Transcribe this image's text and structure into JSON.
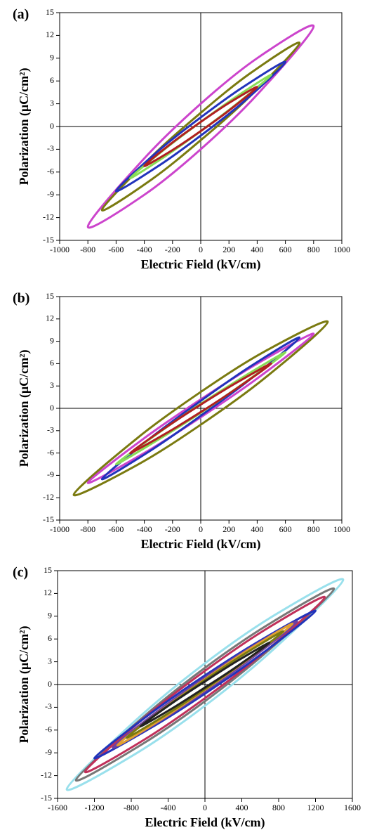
{
  "chart_data": [
    {
      "type": "line",
      "label": "(a)",
      "xlabel": "Electric Field (kV/cm)",
      "ylabel": "Polarization (μC/cm²)",
      "xlim": [
        -1000,
        1000
      ],
      "xticks": [
        -1000,
        -800,
        -600,
        -400,
        -200,
        0,
        200,
        400,
        600,
        800,
        1000
      ],
      "ylim": [
        -15,
        15
      ],
      "yticks": [
        -15,
        -12,
        -9,
        -6,
        -3,
        0,
        3,
        6,
        9,
        12,
        15
      ],
      "series": [
        {
          "color": "#cc44cc",
          "x": [
            800,
            400,
            0,
            -400,
            -800,
            -400,
            0,
            400
          ],
          "values": [
            13.2,
            9,
            3,
            -4.2,
            -13.2,
            -9,
            -3,
            4.2
          ]
        },
        {
          "color": "#7a7a10",
          "x": [
            700,
            350,
            0,
            -350,
            -700,
            -350,
            0,
            350
          ],
          "values": [
            11,
            7,
            1.8,
            -4,
            -11,
            -7,
            -1.8,
            4
          ]
        },
        {
          "color": "#2233bb",
          "x": [
            600,
            300,
            0,
            -300,
            -600,
            -300,
            0,
            300
          ],
          "values": [
            8.5,
            5.2,
            1.2,
            -3.2,
            -8.5,
            -5.2,
            -1.2,
            3.2
          ]
        },
        {
          "color": "#88dd55",
          "x": [
            500,
            250,
            0,
            -250,
            -500,
            -250,
            0,
            250
          ],
          "values": [
            6.8,
            3.9,
            0.6,
            -2.9,
            -6.8,
            -3.9,
            -0.6,
            2.9
          ]
        },
        {
          "color": "#b02020",
          "x": [
            400,
            200,
            0,
            -200,
            -400,
            -200,
            0,
            200
          ],
          "values": [
            5.2,
            3.1,
            0.6,
            -2.1,
            -5.2,
            -3.1,
            -0.6,
            2.1
          ]
        }
      ]
    },
    {
      "type": "line",
      "label": "(b)",
      "xlabel": "Electric Field (kV/cm)",
      "ylabel": "Polarization (μC/cm²)",
      "xlim": [
        -1000,
        1000
      ],
      "xticks": [
        -1000,
        -800,
        -600,
        -400,
        -200,
        0,
        200,
        400,
        600,
        800,
        1000
      ],
      "ylim": [
        -15,
        15
      ],
      "yticks": [
        -15,
        -12,
        -9,
        -6,
        -3,
        0,
        3,
        6,
        9,
        12,
        15
      ],
      "series": [
        {
          "color": "#7a7a10",
          "x": [
            900,
            450,
            0,
            -450,
            -900,
            -450,
            0,
            450
          ],
          "values": [
            11.6,
            7.6,
            2.2,
            -4,
            -11.6,
            -7.6,
            -2.2,
            4
          ]
        },
        {
          "color": "#cc44cc",
          "x": [
            800,
            400,
            0,
            -400,
            -800,
            -400,
            0,
            400
          ],
          "values": [
            10,
            6,
            1.2,
            -4,
            -10,
            -6,
            -1.2,
            4
          ]
        },
        {
          "color": "#2233bb",
          "x": [
            700,
            350,
            0,
            -350,
            -700,
            -350,
            0,
            350
          ],
          "values": [
            9.5,
            5.6,
            1,
            -3.9,
            -9.5,
            -5.6,
            -1,
            3.9
          ]
        },
        {
          "color": "#88dd55",
          "x": [
            600,
            300,
            0,
            -300,
            -600,
            -300,
            0,
            300
          ],
          "values": [
            7.5,
            4.2,
            0.6,
            -3.3,
            -7.5,
            -4.2,
            -0.6,
            3.3
          ]
        },
        {
          "color": "#b02020",
          "x": [
            500,
            250,
            0,
            -250,
            -500,
            -250,
            0,
            250
          ],
          "values": [
            6,
            3.4,
            0.5,
            -2.6,
            -6,
            -3.4,
            -0.5,
            2.6
          ]
        }
      ]
    },
    {
      "type": "line",
      "label": "(c)",
      "xlabel": "Electric Field (kV/cm)",
      "ylabel": "Polarization (μC/cm²)",
      "xlim": [
        -1600,
        1600
      ],
      "xticks": [
        -1600,
        -1200,
        -800,
        -400,
        0,
        400,
        800,
        1200,
        1600
      ],
      "ylim": [
        -15,
        15
      ],
      "yticks": [
        -15,
        -12,
        -9,
        -6,
        -3,
        0,
        3,
        6,
        9,
        12,
        15
      ],
      "series": [
        {
          "color": "#99e0ec",
          "x": [
            1500,
            750,
            0,
            -750,
            -1500,
            -750,
            0,
            750
          ],
          "values": [
            13.8,
            9.1,
            2.8,
            -4.7,
            -13.8,
            -9.1,
            -2.8,
            4.7
          ]
        },
        {
          "color": "#777777",
          "x": [
            1400,
            700,
            0,
            -700,
            -1400,
            -700,
            0,
            700
          ],
          "values": [
            12.6,
            8,
            2.2,
            -4.6,
            -12.6,
            -8,
            -2.2,
            4.6
          ]
        },
        {
          "color": "#c0305a",
          "x": [
            1300,
            650,
            0,
            -650,
            -1300,
            -650,
            0,
            650
          ],
          "values": [
            11.5,
            7.2,
            1.8,
            -4.3,
            -11.5,
            -7.2,
            -1.8,
            4.3
          ]
        },
        {
          "color": "#2233bb",
          "x": [
            1200,
            600,
            0,
            -600,
            -1200,
            -600,
            0,
            600
          ],
          "values": [
            9.7,
            5.8,
            1.2,
            -3.9,
            -9.7,
            -5.8,
            -1.2,
            3.9
          ]
        },
        {
          "color": "#7040a0",
          "x": [
            1000,
            500,
            0,
            -500,
            -1000,
            -500,
            0,
            500
          ],
          "values": [
            8.3,
            4.9,
            0.9,
            -3.4,
            -8.3,
            -4.9,
            -0.9,
            3.4
          ]
        },
        {
          "color": "#e0a030",
          "x": [
            950,
            475,
            0,
            -475,
            -950,
            -475,
            0,
            475
          ],
          "values": [
            8,
            4.6,
            0.7,
            -3.4,
            -8,
            -4.6,
            -0.7,
            3.4
          ]
        },
        {
          "color": "#7a7a10",
          "x": [
            850,
            425,
            0,
            -425,
            -850,
            -425,
            0,
            425
          ],
          "values": [
            7,
            4,
            0.6,
            -3,
            -7,
            -4,
            -0.6,
            3
          ]
        },
        {
          "color": "#222222",
          "x": [
            700,
            350,
            0,
            -350,
            -700,
            -350,
            0,
            350
          ],
          "values": [
            5.5,
            3.1,
            0.4,
            -2.4,
            -5.5,
            -3.1,
            -0.4,
            2.4
          ]
        }
      ]
    }
  ]
}
